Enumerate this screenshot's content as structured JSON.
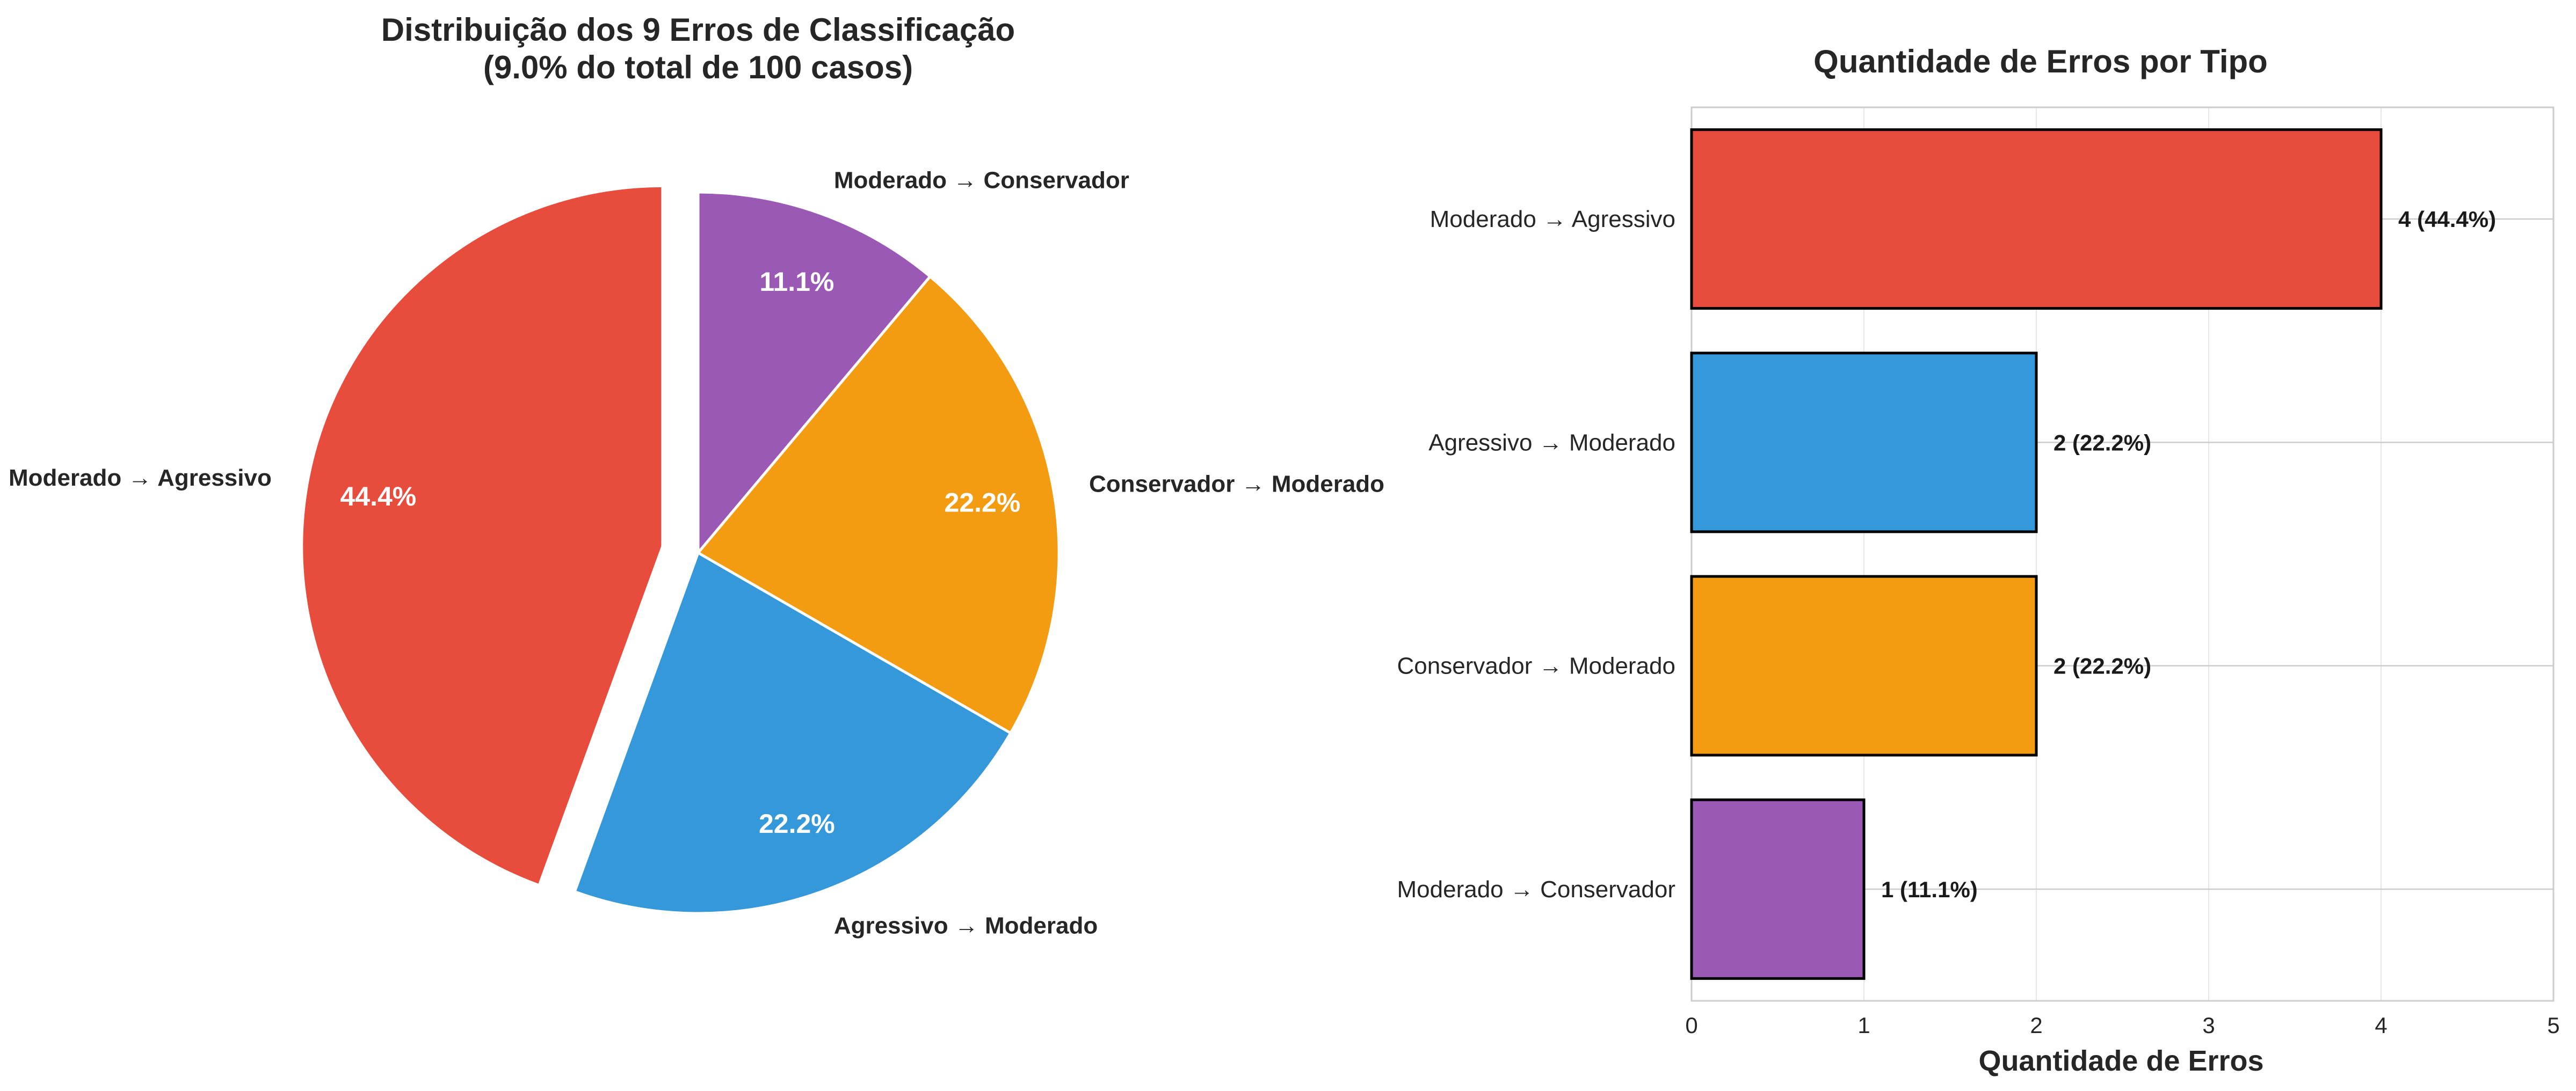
{
  "chart_data": [
    {
      "type": "pie",
      "title": "Distribuição dos 9 Erros de Classificação",
      "subtitle": "(9.0% do total de 100 casos)",
      "slices": [
        {
          "label": "Moderado → Agressivo",
          "value": 4,
          "percent_label": "44.4%",
          "color": "#e74c3c",
          "exploded": true
        },
        {
          "label": "Agressivo → Moderado",
          "value": 2,
          "percent_label": "22.2%",
          "color": "#3498db",
          "exploded": false
        },
        {
          "label": "Conservador → Moderado",
          "value": 2,
          "percent_label": "22.2%",
          "color": "#f39c12",
          "exploded": false
        },
        {
          "label": "Moderado → Conservador",
          "value": 1,
          "percent_label": "11.1%",
          "color": "#9b59b6",
          "exploded": false
        }
      ],
      "start_angle_deg": 90,
      "direction": "counterclockwise"
    },
    {
      "type": "bar",
      "orientation": "horizontal",
      "title": "Quantidade de Erros por Tipo",
      "xlabel": "Quantidade de Erros",
      "ylabel": "",
      "xlim": [
        0,
        5
      ],
      "xticks": [
        "0",
        "1",
        "2",
        "3",
        "4",
        "5"
      ],
      "grid": true,
      "categories": [
        "Moderado → Agressivo",
        "Agressivo → Moderado",
        "Conservador → Moderado",
        "Moderado → Conservador"
      ],
      "values": [
        4,
        2,
        2,
        1
      ],
      "value_labels": [
        "4 (44.4%)",
        "2 (22.2%)",
        "2 (22.2%)",
        "1 (11.1%)"
      ],
      "colors": [
        "#e74c3c",
        "#3498db",
        "#f39c12",
        "#9b59b6"
      ]
    }
  ]
}
